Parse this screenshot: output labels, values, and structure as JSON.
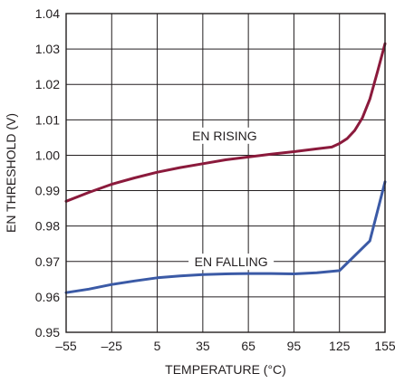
{
  "chart_data": {
    "type": "line",
    "title": "",
    "xlabel": "TEMPERATURE (°C)",
    "ylabel": "EN THRESHOLD (V)",
    "xlim": [
      -55,
      155
    ],
    "ylim": [
      0.95,
      1.04
    ],
    "x_ticks": [
      -55,
      -25,
      5,
      35,
      65,
      95,
      125,
      155
    ],
    "x_tick_labels": [
      "–55",
      "–25",
      "5",
      "35",
      "65",
      "95",
      "125",
      "155"
    ],
    "y_ticks": [
      0.95,
      0.96,
      0.97,
      0.98,
      0.99,
      1.0,
      1.01,
      1.02,
      1.03,
      1.04
    ],
    "y_tick_labels": [
      "0.95",
      "0.96",
      "0.97",
      "0.98",
      "0.99",
      "1.00",
      "1.01",
      "1.02",
      "1.03",
      "1.04"
    ],
    "grid": true,
    "legend": "none",
    "series": [
      {
        "name": "EN RISING",
        "color": "#8b1a3c",
        "x": [
          -55,
          -40,
          -25,
          -10,
          5,
          20,
          35,
          50,
          65,
          80,
          95,
          110,
          120,
          125,
          130,
          135,
          140,
          145,
          150,
          155
        ],
        "y": [
          0.987,
          0.9895,
          0.9918,
          0.9936,
          0.9952,
          0.9965,
          0.9976,
          0.9987,
          0.9995,
          1.0003,
          1.001,
          1.0018,
          1.0023,
          1.0033,
          1.0047,
          1.007,
          1.0105,
          1.0158,
          1.0235,
          1.0315
        ]
      },
      {
        "name": "EN FALLING",
        "color": "#3b5aa6",
        "x": [
          -55,
          -40,
          -25,
          -10,
          5,
          20,
          35,
          50,
          65,
          80,
          95,
          110,
          125,
          145,
          155
        ],
        "y": [
          0.9612,
          0.9622,
          0.9635,
          0.9645,
          0.9654,
          0.9659,
          0.9663,
          0.9665,
          0.9666,
          0.9666,
          0.9665,
          0.9668,
          0.9674,
          0.9758,
          0.9925
        ]
      }
    ],
    "annotations": [
      "EN RISING",
      "EN FALLING"
    ]
  }
}
